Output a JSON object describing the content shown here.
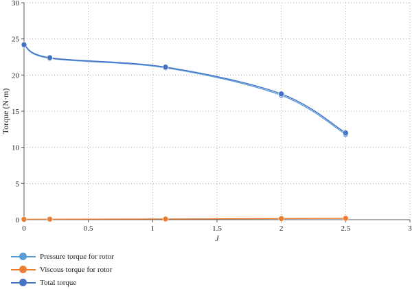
{
  "chart_data": {
    "type": "line",
    "xlabel": "J",
    "ylabel": "Torque (N·m)",
    "xlim": [
      0,
      3
    ],
    "ylim": [
      0,
      30
    ],
    "xticks": [
      "0",
      "0.5",
      "1",
      "1.5",
      "2",
      "2.5",
      "3"
    ],
    "yticks": [
      "0",
      "5",
      "10",
      "15",
      "20",
      "25",
      "30"
    ],
    "grid": "dotted",
    "legend_position": "bottom-left",
    "x": [
      0,
      0.2,
      1.1,
      2,
      2.5
    ],
    "series": [
      {
        "name": "Pressure torque for rotor",
        "color": "#5b9bd5",
        "values": [
          24.1,
          22.3,
          21.0,
          17.2,
          11.8
        ]
      },
      {
        "name": "Viscous torque for rotor",
        "color": "#ed7d31",
        "values": [
          0.05,
          0.07,
          0.1,
          0.15,
          0.18
        ]
      },
      {
        "name": "Total torque",
        "color": "#4472c4",
        "values": [
          24.2,
          22.4,
          21.1,
          17.4,
          12.0
        ]
      }
    ]
  }
}
